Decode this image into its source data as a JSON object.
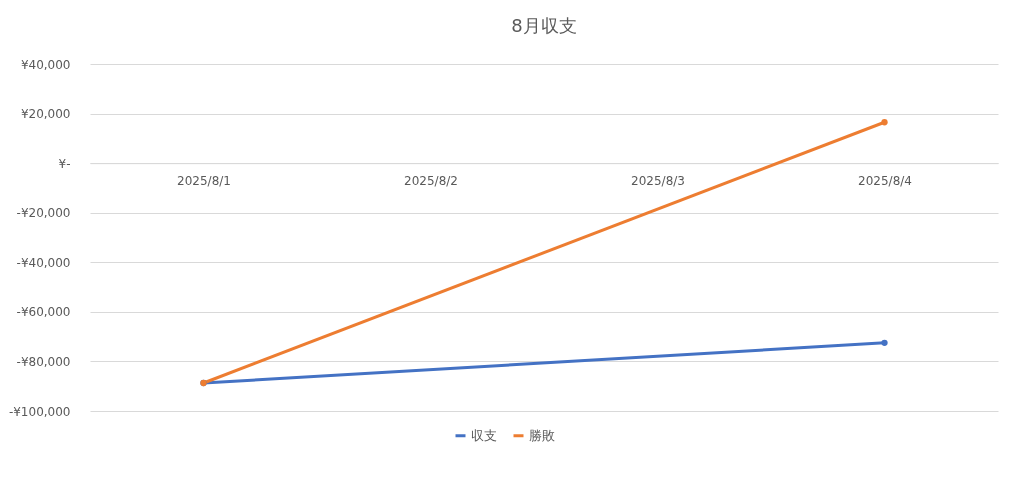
{
  "chart_data": {
    "type": "line",
    "title": "8月収支",
    "categories": [
      "2025/8/1",
      "2025/8/2",
      "2025/8/3",
      "2025/8/4"
    ],
    "series": [
      {
        "name": "収支",
        "color": "#4472c4",
        "values": [
          -88700,
          null,
          null,
          -72500
        ]
      },
      {
        "name": "勝敗",
        "color": "#ed7d31",
        "values": [
          -88700,
          null,
          null,
          16500
        ]
      }
    ],
    "ylim": [
      -100000,
      40000
    ],
    "yticks": [
      {
        "value": 40000,
        "label": "¥40,000"
      },
      {
        "value": 20000,
        "label": "¥20,000"
      },
      {
        "value": 0,
        "label": "¥-"
      },
      {
        "value": -20000,
        "label": "-¥20,000"
      },
      {
        "value": -40000,
        "label": "-¥40,000"
      },
      {
        "value": -60000,
        "label": "-¥60,000"
      },
      {
        "value": -80000,
        "label": "-¥80,000"
      },
      {
        "value": -100000,
        "label": "-¥100,000"
      }
    ],
    "grid": "y",
    "legend": "bottom",
    "marker": "circle",
    "line_style": "solid"
  }
}
